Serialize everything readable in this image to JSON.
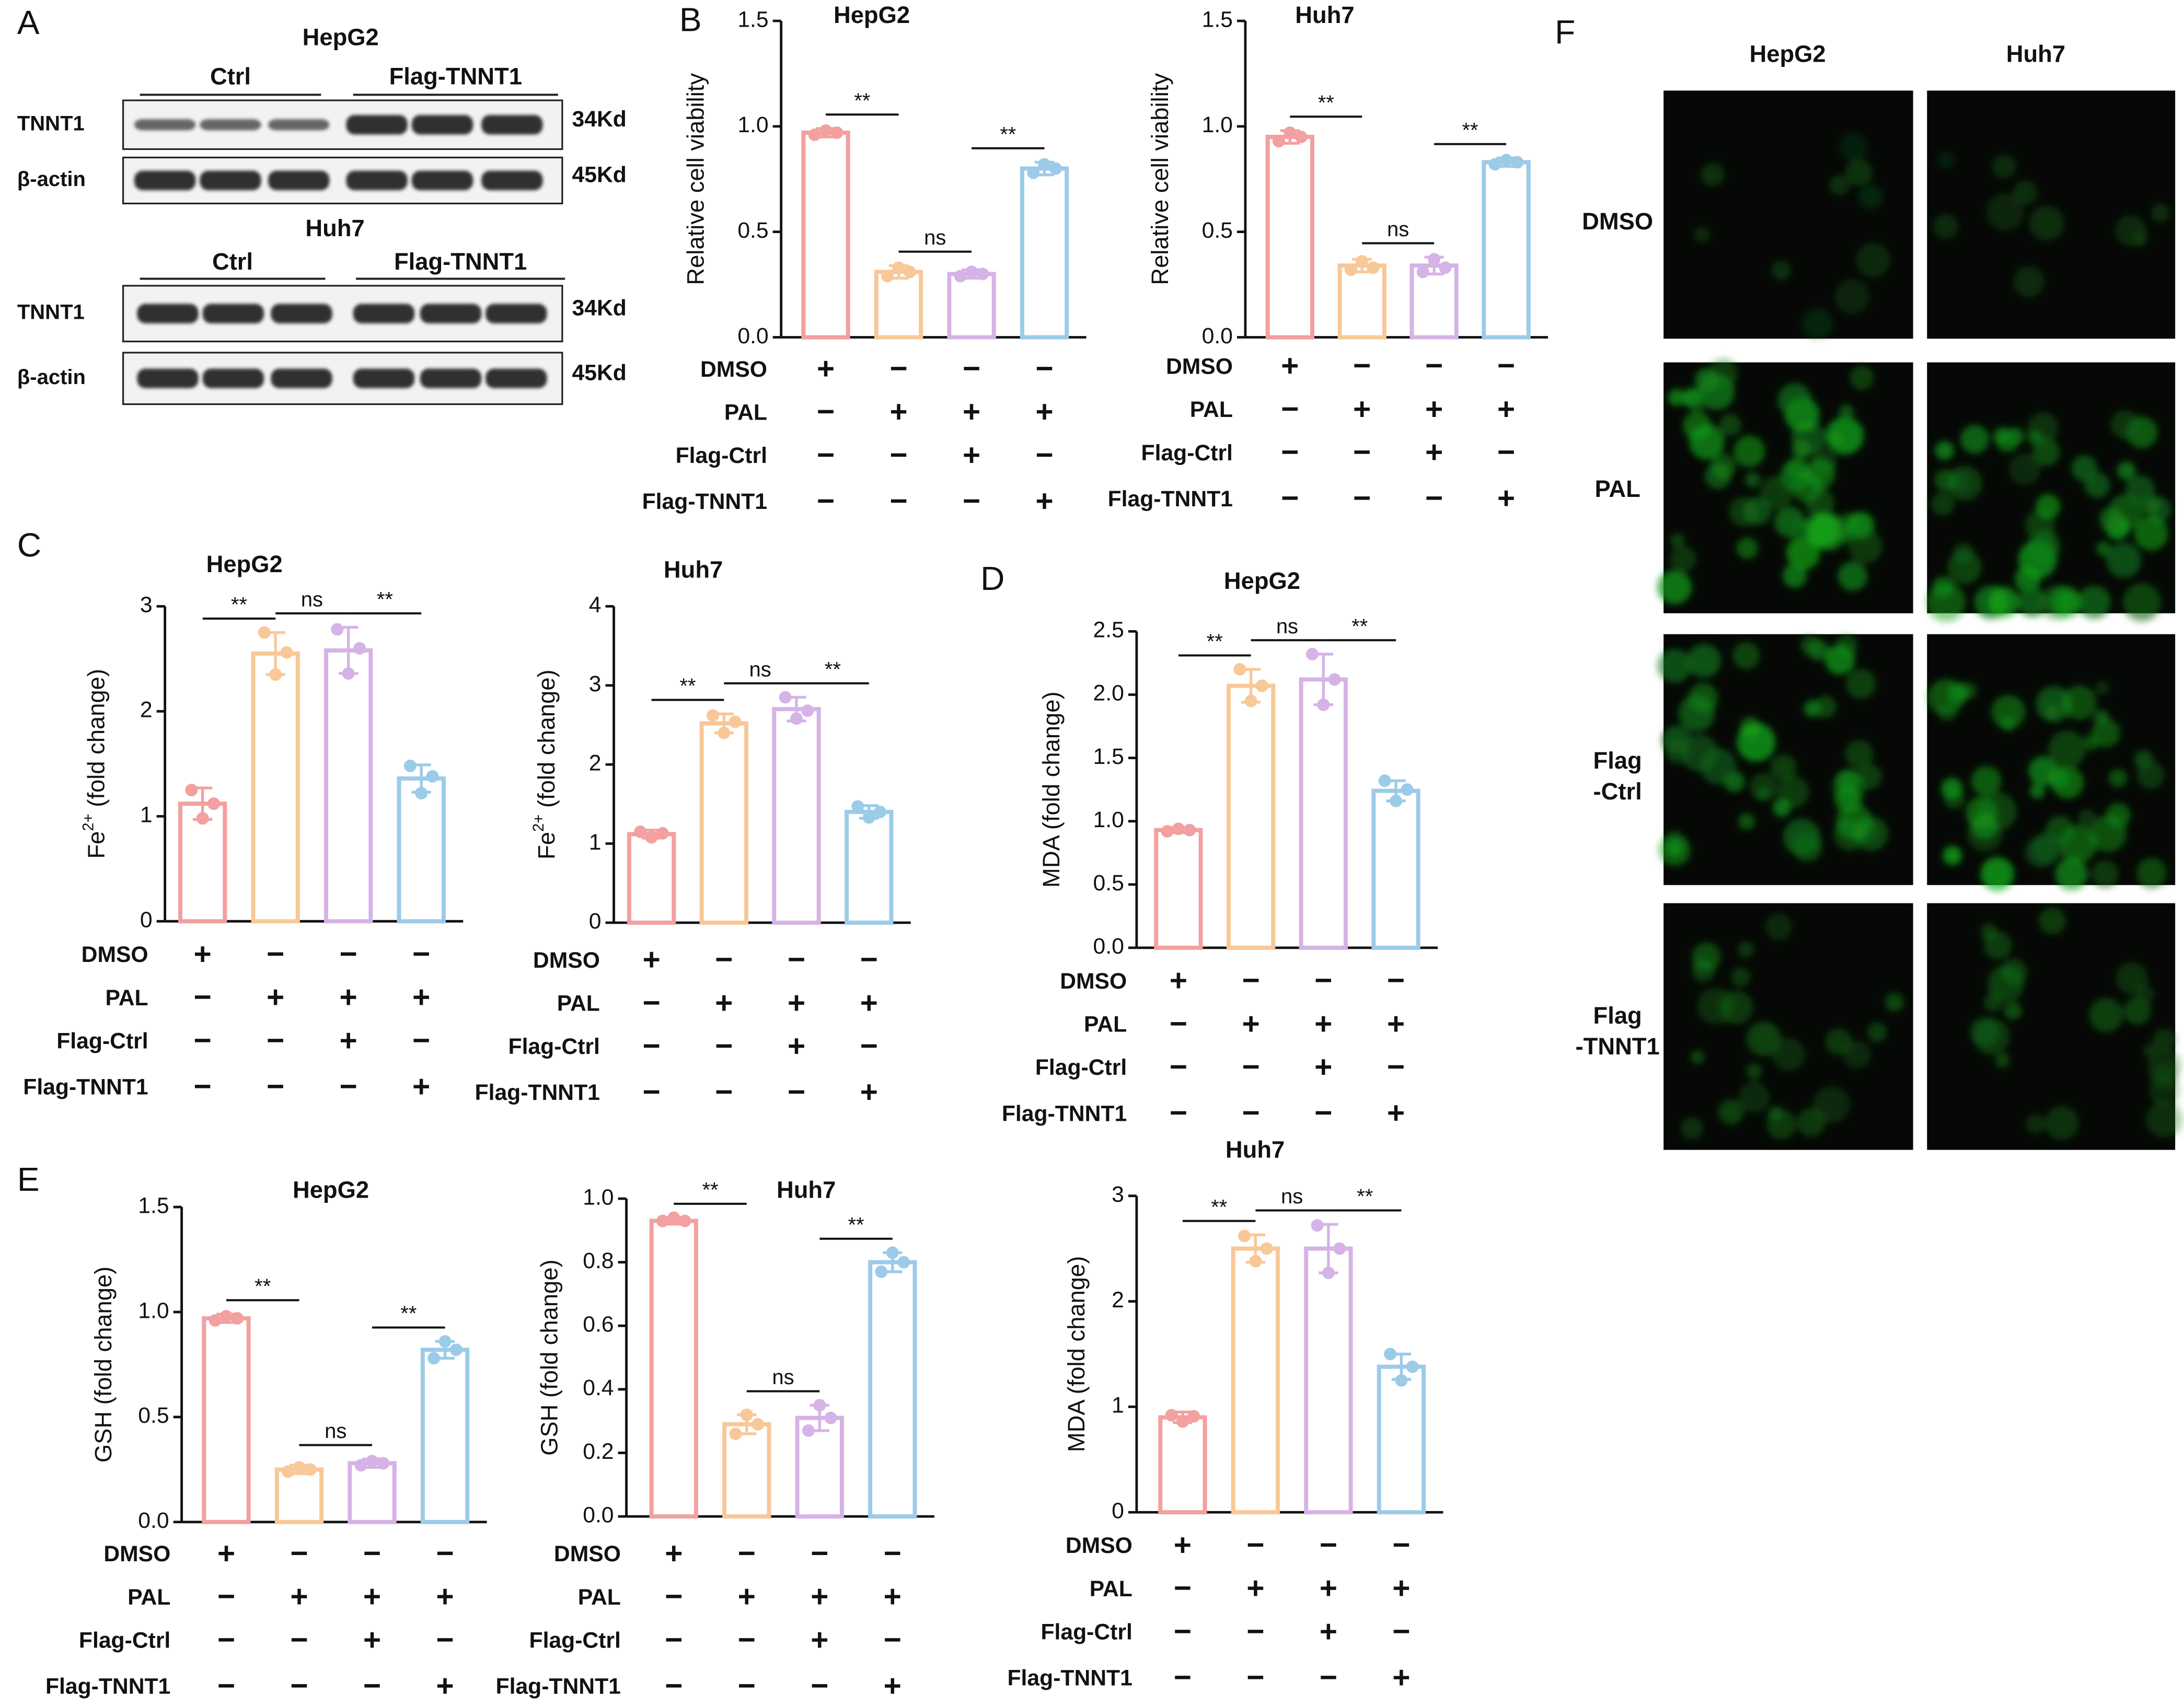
{
  "panel_letters": [
    "A",
    "B",
    "C",
    "D",
    "E",
    "F"
  ],
  "blots": [
    {
      "title": "HepG2",
      "groups": [
        "Ctrl",
        "Flag-TNNT1"
      ],
      "rows": [
        {
          "name": "TNNT1",
          "size": "34Kd"
        },
        {
          "name": "β-actin",
          "size": "45Kd"
        }
      ]
    },
    {
      "title": "Huh7",
      "groups": [
        "Ctrl",
        "Flag-TNNT1"
      ],
      "rows": [
        {
          "name": "TNNT1",
          "size": "34Kd"
        },
        {
          "name": "β-actin",
          "size": "45Kd"
        }
      ]
    }
  ],
  "images": {
    "columns": [
      "HepG2",
      "Huh7"
    ],
    "rows": [
      [
        "DMSO"
      ],
      [
        "PAL"
      ],
      [
        "Flag",
        "-Ctrl"
      ],
      [
        "Flag",
        "-TNNT1"
      ]
    ]
  },
  "chart_data": [
    {
      "type": "bar",
      "title": "HepG2",
      "y_label": [
        {
          "text": "Relative cell viability"
        }
      ],
      "values": [
        0.97,
        0.31,
        0.3,
        0.8
      ],
      "errors": [
        0.02,
        0.03,
        0.02,
        0.03
      ],
      "points": [
        [
          0.96,
          0.98,
          0.97
        ],
        [
          0.29,
          0.33,
          0.31
        ],
        [
          0.29,
          0.31,
          0.3
        ],
        [
          0.78,
          0.82,
          0.8
        ]
      ],
      "colors": [
        "#f2a0a0",
        "#f8c898",
        "#d5b3e6",
        "#9ccbe8"
      ],
      "annotations": [
        "**",
        "ns",
        "**"
      ],
      "conditions": [
        {
          "name": "DMSO",
          "marks": [
            "+",
            "−",
            "−",
            "−"
          ]
        },
        {
          "name": "PAL",
          "marks": [
            "−",
            "+",
            "+",
            "+"
          ]
        },
        {
          "name": "Flag-Ctrl",
          "marks": [
            "−",
            "−",
            "+",
            "−"
          ]
        },
        {
          "name": "Flag-TNNT1",
          "marks": [
            "−",
            "−",
            "−",
            "+"
          ]
        }
      ],
      "ylim": [
        0,
        1.5
      ],
      "yticks": [
        {
          "value": 0,
          "label": "0.0"
        },
        0.5,
        {
          "value": 1,
          "label": "1.0"
        },
        1.5
      ]
    },
    {
      "type": "bar",
      "title": "Huh7",
      "y_label": [
        {
          "text": "Relative cell viability"
        }
      ],
      "values": [
        0.95,
        0.34,
        0.34,
        0.83
      ],
      "errors": [
        0.03,
        0.03,
        0.04,
        0.02
      ],
      "points": [
        [
          0.93,
          0.97,
          0.95
        ],
        [
          0.32,
          0.36,
          0.33
        ],
        [
          0.31,
          0.37,
          0.33
        ],
        [
          0.82,
          0.84,
          0.83
        ]
      ],
      "colors": [
        "#f2a0a0",
        "#f8c898",
        "#d5b3e6",
        "#9ccbe8"
      ],
      "annotations": [
        "**",
        "ns",
        "**"
      ],
      "conditions": [
        {
          "name": "DMSO",
          "marks": [
            "+",
            "−",
            "−",
            "−"
          ]
        },
        {
          "name": "PAL",
          "marks": [
            "−",
            "+",
            "+",
            "+"
          ]
        },
        {
          "name": "Flag-Ctrl",
          "marks": [
            "−",
            "−",
            "+",
            "−"
          ]
        },
        {
          "name": "Flag-TNNT1",
          "marks": [
            "−",
            "−",
            "−",
            "+"
          ]
        }
      ],
      "ylim": [
        0,
        1.5
      ],
      "yticks": [
        {
          "value": 0,
          "label": "0.0"
        },
        0.5,
        {
          "value": 1,
          "label": "1.0"
        },
        1.5
      ]
    },
    {
      "type": "bar",
      "title": "HepG2",
      "y_label": [
        {
          "text": "Fe"
        },
        {
          "text": "2+",
          "sup": true
        },
        {
          "text": " (fold change)"
        }
      ],
      "values": [
        1.12,
        2.55,
        2.58,
        1.36
      ],
      "errors": [
        0.15,
        0.2,
        0.22,
        0.13
      ],
      "points": [
        [
          1.25,
          0.98,
          1.12
        ],
        [
          2.75,
          2.35,
          2.56
        ],
        [
          2.78,
          2.36,
          2.6
        ],
        [
          1.48,
          1.22,
          1.38
        ]
      ],
      "colors": [
        "#f2a0a0",
        "#f8c898",
        "#d5b3e6",
        "#9ccbe8"
      ],
      "annotations": [
        "**",
        "ns",
        "**"
      ],
      "conditions": [
        {
          "name": "DMSO",
          "marks": [
            "+",
            "−",
            "−",
            "−"
          ]
        },
        {
          "name": "PAL",
          "marks": [
            "−",
            "+",
            "+",
            "+"
          ]
        },
        {
          "name": "Flag-Ctrl",
          "marks": [
            "−",
            "−",
            "+",
            "−"
          ]
        },
        {
          "name": "Flag-TNNT1",
          "marks": [
            "−",
            "−",
            "−",
            "+"
          ]
        }
      ],
      "ylim": [
        0,
        3
      ],
      "yticks": [
        0,
        1,
        2,
        3
      ]
    },
    {
      "type": "bar",
      "title": "Huh7",
      "y_label": [
        {
          "text": "Fe"
        },
        {
          "text": "2+",
          "sup": true
        },
        {
          "text": " (fold change)"
        }
      ],
      "values": [
        1.12,
        2.52,
        2.7,
        1.4
      ],
      "errors": [
        0.05,
        0.12,
        0.15,
        0.08
      ],
      "points": [
        [
          1.15,
          1.08,
          1.13
        ],
        [
          2.62,
          2.4,
          2.54
        ],
        [
          2.85,
          2.58,
          2.68
        ],
        [
          1.47,
          1.33,
          1.4
        ]
      ],
      "colors": [
        "#f2a0a0",
        "#f8c898",
        "#d5b3e6",
        "#9ccbe8"
      ],
      "annotations": [
        "**",
        "ns",
        "**"
      ],
      "conditions": [
        {
          "name": "DMSO",
          "marks": [
            "+",
            "−",
            "−",
            "−"
          ]
        },
        {
          "name": "PAL",
          "marks": [
            "−",
            "+",
            "+",
            "+"
          ]
        },
        {
          "name": "Flag-Ctrl",
          "marks": [
            "−",
            "−",
            "+",
            "−"
          ]
        },
        {
          "name": "Flag-TNNT1",
          "marks": [
            "−",
            "−",
            "−",
            "+"
          ]
        }
      ],
      "ylim": [
        0,
        4
      ],
      "yticks": [
        0,
        1,
        2,
        3,
        4
      ]
    },
    {
      "type": "bar",
      "title": "HepG2",
      "y_label": [
        {
          "text": "MDA (fold change)"
        }
      ],
      "values": [
        0.93,
        2.07,
        2.12,
        1.24
      ],
      "errors": [
        0.02,
        0.13,
        0.2,
        0.08
      ],
      "points": [
        [
          0.92,
          0.94,
          0.93
        ],
        [
          2.2,
          1.95,
          2.07
        ],
        [
          2.32,
          1.92,
          2.12
        ],
        [
          1.32,
          1.16,
          1.25
        ]
      ],
      "colors": [
        "#f2a0a0",
        "#f8c898",
        "#d5b3e6",
        "#9ccbe8"
      ],
      "annotations": [
        "**",
        "ns",
        "**"
      ],
      "conditions": [
        {
          "name": "DMSO",
          "marks": [
            "+",
            "−",
            "−",
            "−"
          ]
        },
        {
          "name": "PAL",
          "marks": [
            "−",
            "+",
            "+",
            "+"
          ]
        },
        {
          "name": "Flag-Ctrl",
          "marks": [
            "−",
            "−",
            "+",
            "−"
          ]
        },
        {
          "name": "Flag-TNNT1",
          "marks": [
            "−",
            "−",
            "−",
            "+"
          ]
        }
      ],
      "ylim": [
        0,
        2.5
      ],
      "yticks": [
        {
          "value": 0,
          "label": "0.0"
        },
        0.5,
        {
          "value": 1,
          "label": "1.0"
        },
        1.5,
        {
          "value": 2,
          "label": "2.0"
        },
        2.5
      ]
    },
    {
      "type": "bar",
      "title": "Huh7",
      "y_label": [
        {
          "text": "MDA (fold change)"
        }
      ],
      "values": [
        0.9,
        2.5,
        2.5,
        1.38
      ],
      "errors": [
        0.05,
        0.13,
        0.23,
        0.12
      ],
      "points": [
        [
          0.92,
          0.86,
          0.91
        ],
        [
          2.62,
          2.38,
          2.5
        ],
        [
          2.72,
          2.27,
          2.5
        ],
        [
          1.5,
          1.25,
          1.38
        ]
      ],
      "colors": [
        "#f2a0a0",
        "#f8c898",
        "#d5b3e6",
        "#9ccbe8"
      ],
      "annotations": [
        "**",
        "ns",
        "**"
      ],
      "conditions": [
        {
          "name": "DMSO",
          "marks": [
            "+",
            "−",
            "−",
            "−"
          ]
        },
        {
          "name": "PAL",
          "marks": [
            "−",
            "+",
            "+",
            "+"
          ]
        },
        {
          "name": "Flag-Ctrl",
          "marks": [
            "−",
            "−",
            "+",
            "−"
          ]
        },
        {
          "name": "Flag-TNNT1",
          "marks": [
            "−",
            "−",
            "−",
            "+"
          ]
        }
      ],
      "ylim": [
        0,
        3
      ],
      "yticks": [
        0,
        1,
        2,
        3
      ]
    },
    {
      "type": "bar",
      "title": "HepG2",
      "y_label": [
        {
          "text": "GSH (fold change)"
        }
      ],
      "values": [
        0.97,
        0.25,
        0.28,
        0.82
      ],
      "errors": [
        0.02,
        0.02,
        0.02,
        0.04
      ],
      "points": [
        [
          0.96,
          0.98,
          0.97
        ],
        [
          0.24,
          0.26,
          0.25
        ],
        [
          0.27,
          0.29,
          0.28
        ],
        [
          0.78,
          0.86,
          0.82
        ]
      ],
      "colors": [
        "#f2a0a0",
        "#f8c898",
        "#d5b3e6",
        "#9ccbe8"
      ],
      "annotations": [
        "**",
        "ns",
        "**"
      ],
      "conditions": [
        {
          "name": "DMSO",
          "marks": [
            "+",
            "−",
            "−",
            "−"
          ]
        },
        {
          "name": "PAL",
          "marks": [
            "−",
            "+",
            "+",
            "+"
          ]
        },
        {
          "name": "Flag-Ctrl",
          "marks": [
            "−",
            "−",
            "+",
            "−"
          ]
        },
        {
          "name": "Flag-TNNT1",
          "marks": [
            "−",
            "−",
            "−",
            "+"
          ]
        }
      ],
      "ylim": [
        0,
        1.5
      ],
      "yticks": [
        {
          "value": 0,
          "label": "0.0"
        },
        0.5,
        {
          "value": 1,
          "label": "1.0"
        },
        1.5
      ]
    },
    {
      "type": "bar",
      "title": "Huh7",
      "y_label": [
        {
          "text": "GSH (fold change)"
        }
      ],
      "values": [
        0.93,
        0.29,
        0.31,
        0.8
      ],
      "errors": [
        0.01,
        0.03,
        0.04,
        0.03
      ],
      "points": [
        [
          0.93,
          0.94,
          0.93
        ],
        [
          0.26,
          0.32,
          0.29
        ],
        [
          0.27,
          0.35,
          0.31
        ],
        [
          0.77,
          0.83,
          0.8
        ]
      ],
      "colors": [
        "#f2a0a0",
        "#f8c898",
        "#d5b3e6",
        "#9ccbe8"
      ],
      "annotations": [
        "**",
        "ns",
        "**"
      ],
      "conditions": [
        {
          "name": "DMSO",
          "marks": [
            "+",
            "−",
            "−",
            "−"
          ]
        },
        {
          "name": "PAL",
          "marks": [
            "−",
            "+",
            "+",
            "+"
          ]
        },
        {
          "name": "Flag-Ctrl",
          "marks": [
            "−",
            "−",
            "+",
            "−"
          ]
        },
        {
          "name": "Flag-TNNT1",
          "marks": [
            "−",
            "−",
            "−",
            "+"
          ]
        }
      ],
      "ylim": [
        0,
        1
      ],
      "yticks": [
        {
          "value": 0,
          "label": "0.0"
        },
        0.2,
        0.4,
        0.6,
        0.8,
        {
          "value": 1,
          "label": "1.0"
        }
      ]
    }
  ]
}
